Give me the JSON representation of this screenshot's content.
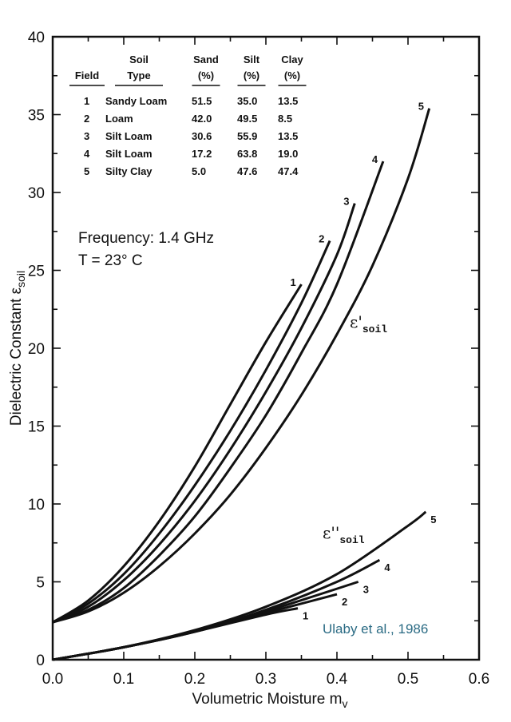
{
  "chart_data": {
    "type": "line",
    "xlabel": "Volumetric Moisture m",
    "xlabel_sub": "v",
    "ylabel": "Dielectric Constant ε",
    "ylabel_sub": "soil",
    "xlim": [
      0.0,
      0.6
    ],
    "ylim": [
      0,
      40
    ],
    "xticks": [
      "0.0",
      "0.1",
      "0.2",
      "0.3",
      "0.4",
      "0.5",
      "0.6"
    ],
    "yticks": [
      "0",
      "5",
      "10",
      "15",
      "20",
      "25",
      "30",
      "35",
      "40"
    ],
    "xtick_values": [
      0,
      0.1,
      0.2,
      0.3,
      0.4,
      0.5,
      0.6
    ],
    "ytick_values": [
      0,
      5,
      10,
      15,
      20,
      25,
      30,
      35,
      40
    ],
    "grid": false,
    "annotation_lines": [
      "Frequency:  1.4 GHz",
      "T = 23° C"
    ],
    "real_group_label": {
      "symbol": "ε'",
      "sub": "soil"
    },
    "imag_group_label": {
      "symbol": "ε''",
      "sub": "soil"
    },
    "credit": "Ulaby et al., 1986",
    "series": [
      {
        "name": "1",
        "part": "real",
        "x": [
          0,
          0.05,
          0.1,
          0.15,
          0.2,
          0.25,
          0.3,
          0.35
        ],
        "y": [
          2.4,
          3.8,
          6.0,
          8.9,
          12.4,
          16.4,
          20.4,
          24.1
        ]
      },
      {
        "name": "2",
        "part": "real",
        "x": [
          0,
          0.05,
          0.1,
          0.15,
          0.2,
          0.25,
          0.3,
          0.35,
          0.39
        ],
        "y": [
          2.4,
          3.6,
          5.5,
          8.1,
          11.2,
          14.7,
          18.6,
          22.9,
          26.9
        ]
      },
      {
        "name": "3",
        "part": "real",
        "x": [
          0,
          0.05,
          0.1,
          0.15,
          0.2,
          0.25,
          0.3,
          0.35,
          0.4,
          0.425
        ],
        "y": [
          2.4,
          3.4,
          5.1,
          7.4,
          10.2,
          13.5,
          17.2,
          21.3,
          26.0,
          29.3
        ]
      },
      {
        "name": "4",
        "part": "real",
        "x": [
          0,
          0.05,
          0.1,
          0.15,
          0.2,
          0.25,
          0.3,
          0.35,
          0.4,
          0.465
        ],
        "y": [
          2.4,
          3.2,
          4.6,
          6.7,
          9.2,
          12.3,
          15.7,
          19.7,
          24.1,
          32.0
        ]
      },
      {
        "name": "5",
        "part": "real",
        "x": [
          0,
          0.05,
          0.1,
          0.15,
          0.2,
          0.25,
          0.3,
          0.35,
          0.4,
          0.45,
          0.5,
          0.53
        ],
        "y": [
          2.4,
          3.1,
          4.3,
          6.0,
          8.1,
          10.6,
          13.6,
          17.0,
          20.9,
          25.3,
          30.9,
          35.4
        ]
      },
      {
        "name": "1",
        "part": "imag",
        "x": [
          0,
          0.1,
          0.2,
          0.3,
          0.345
        ],
        "y": [
          0,
          0.8,
          1.8,
          2.9,
          3.3
        ]
      },
      {
        "name": "2",
        "part": "imag",
        "x": [
          0,
          0.1,
          0.2,
          0.3,
          0.4
        ],
        "y": [
          0,
          0.8,
          1.8,
          3.0,
          4.2
        ]
      },
      {
        "name": "3",
        "part": "imag",
        "x": [
          0,
          0.1,
          0.2,
          0.3,
          0.43
        ],
        "y": [
          0,
          0.8,
          1.8,
          3.1,
          5.0
        ]
      },
      {
        "name": "4",
        "part": "imag",
        "x": [
          0,
          0.1,
          0.2,
          0.3,
          0.4,
          0.46
        ],
        "y": [
          0,
          0.8,
          1.8,
          3.2,
          5.0,
          6.4
        ]
      },
      {
        "name": "5",
        "part": "imag",
        "x": [
          0,
          0.1,
          0.2,
          0.3,
          0.4,
          0.5,
          0.525
        ],
        "y": [
          0,
          0.8,
          1.9,
          3.4,
          5.5,
          8.6,
          9.5
        ]
      }
    ]
  },
  "soil_table": {
    "headers": [
      [
        "",
        "Field"
      ],
      [
        "Soil",
        "Type"
      ],
      [
        "Sand",
        "(%)"
      ],
      [
        "Silt",
        "(%)"
      ],
      [
        "Clay",
        "(%)"
      ]
    ],
    "rows": [
      [
        "1",
        "Sandy Loam",
        "51.5",
        "35.0",
        "13.5"
      ],
      [
        "2",
        "Loam",
        "42.0",
        "49.5",
        "8.5"
      ],
      [
        "3",
        "Silt Loam",
        "30.6",
        "55.9",
        "13.5"
      ],
      [
        "4",
        "Silt Loam",
        "17.2",
        "63.8",
        "19.0"
      ],
      [
        "5",
        "Silty Clay",
        "5.0",
        "47.6",
        "47.4"
      ]
    ]
  }
}
